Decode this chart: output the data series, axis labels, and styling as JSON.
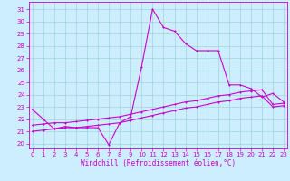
{
  "xlabel": "Windchill (Refroidissement éolien,°C)",
  "bg_color": "#cceeff",
  "grid_color": "#99cccc",
  "line_color": "#cc00cc",
  "x_ticks": [
    0,
    1,
    2,
    3,
    4,
    5,
    6,
    7,
    8,
    9,
    10,
    11,
    12,
    13,
    14,
    15,
    16,
    17,
    18,
    19,
    20,
    21,
    22,
    23
  ],
  "y_ticks": [
    20,
    21,
    22,
    23,
    24,
    25,
    26,
    27,
    28,
    29,
    30,
    31
  ],
  "xlim": [
    -0.3,
    23.3
  ],
  "ylim": [
    19.6,
    31.6
  ],
  "series1_y": [
    22.8,
    22.0,
    21.2,
    21.4,
    21.3,
    21.3,
    21.3,
    19.9,
    21.7,
    22.2,
    26.3,
    31.0,
    29.5,
    29.2,
    28.2,
    27.6,
    27.6,
    27.6,
    24.8,
    24.8,
    24.5,
    23.8,
    24.1,
    23.4
  ],
  "series2_y": [
    21.5,
    21.6,
    21.7,
    21.7,
    21.8,
    21.9,
    22.0,
    22.1,
    22.2,
    22.4,
    22.6,
    22.8,
    23.0,
    23.2,
    23.4,
    23.5,
    23.7,
    23.9,
    24.0,
    24.2,
    24.3,
    24.4,
    23.2,
    23.3
  ],
  "series3_y": [
    21.0,
    21.1,
    21.2,
    21.3,
    21.3,
    21.4,
    21.5,
    21.6,
    21.7,
    21.9,
    22.1,
    22.3,
    22.5,
    22.7,
    22.9,
    23.0,
    23.2,
    23.4,
    23.5,
    23.7,
    23.8,
    23.9,
    23.0,
    23.1
  ],
  "tick_labelsize": 5,
  "xlabel_fontsize": 5.5,
  "lw": 0.8,
  "ms": 2.0
}
